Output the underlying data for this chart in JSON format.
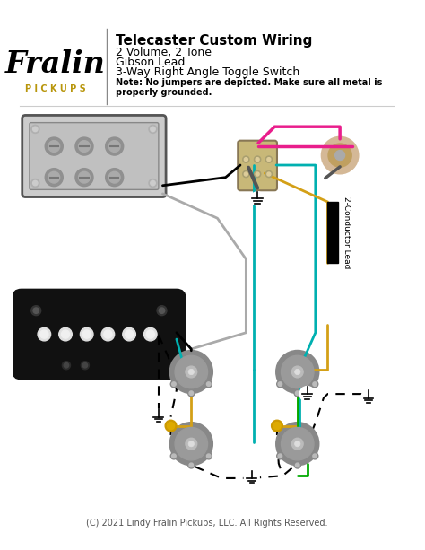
{
  "title": "Telecaster Custom Wiring",
  "subtitle_lines": [
    "2 Volume, 2 Tone",
    "Gibson Lead",
    "3-Way Right Angle Toggle Switch"
  ],
  "note": "Note: No jumpers are depicted. Make sure all metal is\nproperly grounded.",
  "copyright": "(C) 2021 Lindy Fralin Pickups, LLC. All Rights Reserved.",
  "bg_color": "#ffffff",
  "fralin_logo_color": "#000000",
  "pickups_text_color": "#b8960c",
  "title_fontsize": 11,
  "subtitle_fontsize": 9,
  "note_fontsize": 7,
  "copyright_fontsize": 7,
  "wire_colors": {
    "black": "#000000",
    "teal": "#00b0b0",
    "gold": "#d4a017",
    "pink": "#e91e8c",
    "green": "#00aa00",
    "gray": "#aaaaaa",
    "red": "#cc0000",
    "dashed": "#000000"
  }
}
